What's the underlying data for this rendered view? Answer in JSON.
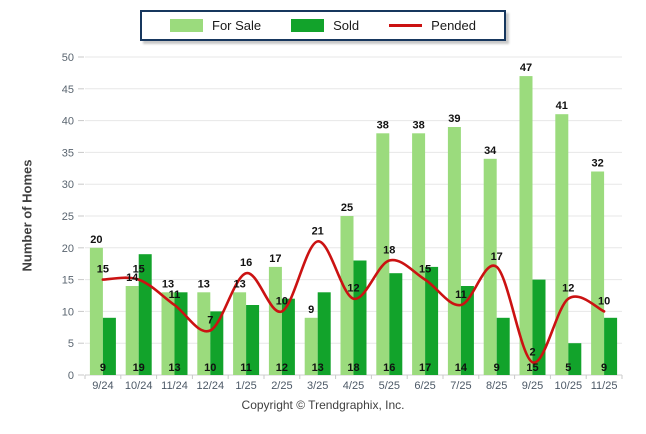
{
  "legend": {
    "for_sale": "For Sale",
    "sold": "Sold",
    "pended": "Pended"
  },
  "colors": {
    "for_sale": "#9BDB7D",
    "sold": "#12A32B",
    "pended": "#CB1212",
    "legend_border": "#17375E",
    "grid": "#E7E7E7",
    "axis": "#CFCFCF",
    "tick": "#C9C9C9",
    "tick_label": "#5A6570",
    "month_label": "#4C5866",
    "value_label": "#111111"
  },
  "ylabel": "Number of Homes",
  "footer": "Copyright © Trendgraphix, Inc.",
  "chart_data": {
    "type": "bar",
    "title": "",
    "xlabel": "",
    "ylabel": "Number of Homes",
    "ylim": [
      0,
      50
    ],
    "yticks": [
      0,
      5,
      10,
      15,
      20,
      25,
      30,
      35,
      40,
      45,
      50
    ],
    "grid": true,
    "legend_position": "top-center",
    "categories": [
      "9/24",
      "10/24",
      "11/24",
      "12/24",
      "1/25",
      "2/25",
      "3/25",
      "4/25",
      "5/25",
      "6/25",
      "7/25",
      "8/25",
      "9/25",
      "10/25",
      "11/25"
    ],
    "series": [
      {
        "name": "For Sale",
        "type": "bar",
        "values": [
          20,
          14,
          13,
          13,
          13,
          17,
          9,
          25,
          38,
          38,
          39,
          34,
          47,
          41,
          32
        ]
      },
      {
        "name": "Sold",
        "type": "bar",
        "values": [
          9,
          19,
          13,
          10,
          11,
          12,
          13,
          18,
          16,
          17,
          14,
          9,
          15,
          5,
          9
        ]
      },
      {
        "name": "Pended",
        "type": "line",
        "values": [
          15,
          15,
          11,
          7,
          16,
          10,
          21,
          12,
          18,
          15,
          11,
          17,
          2,
          12,
          10
        ]
      }
    ]
  }
}
